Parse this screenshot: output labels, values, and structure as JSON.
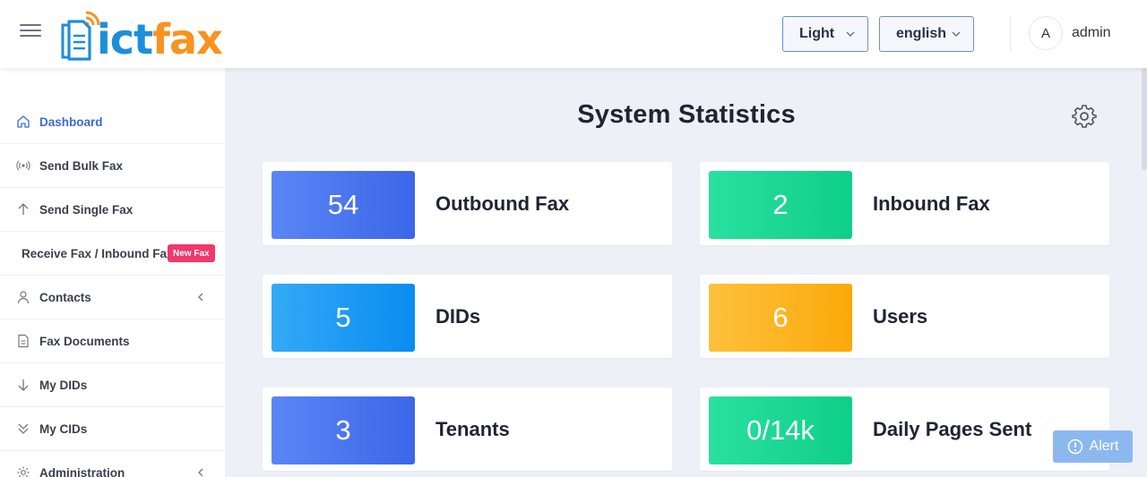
{
  "header": {
    "logo": {
      "ict": "ict",
      "fax": "fax"
    },
    "theme_select": {
      "value": "Light"
    },
    "language_select": {
      "value": "english"
    },
    "user": {
      "avatar_initial": "A",
      "name": "admin"
    }
  },
  "sidebar": {
    "items": [
      {
        "label": "Dashboard",
        "icon": "home-icon",
        "active": true
      },
      {
        "label": "Send Bulk Fax",
        "icon": "broadcast-icon"
      },
      {
        "label": "Send Single Fax",
        "icon": "arrow-up-icon"
      },
      {
        "label": "Receive Fax / Inbound Fax",
        "badge": "New Fax"
      },
      {
        "label": "Contacts",
        "icon": "user-icon",
        "has_submenu": true
      },
      {
        "label": "Fax Documents",
        "icon": "document-icon"
      },
      {
        "label": "My DIDs",
        "icon": "arrow-down-icon"
      },
      {
        "label": "My CIDs",
        "icon": "double-chevron-down-icon"
      },
      {
        "label": "Administration",
        "icon": "gear-icon",
        "has_submenu": true
      }
    ]
  },
  "main": {
    "title": "System Statistics",
    "cards": [
      {
        "value": "54",
        "label": "Outbound Fax",
        "color": "#4a77ef"
      },
      {
        "value": "2",
        "label": "Inbound Fax",
        "color": "#1dd895"
      },
      {
        "value": "5",
        "label": "DIDs",
        "color": "#1f9bf4"
      },
      {
        "value": "6",
        "label": "Users",
        "color": "#fcb52a"
      },
      {
        "value": "3",
        "label": "Tenants",
        "color": "#4a77ef"
      },
      {
        "value": "0/14k",
        "label": "Daily Pages Sent",
        "color": "#1dd895"
      }
    ]
  },
  "alert_button": {
    "label": "Alert"
  }
}
